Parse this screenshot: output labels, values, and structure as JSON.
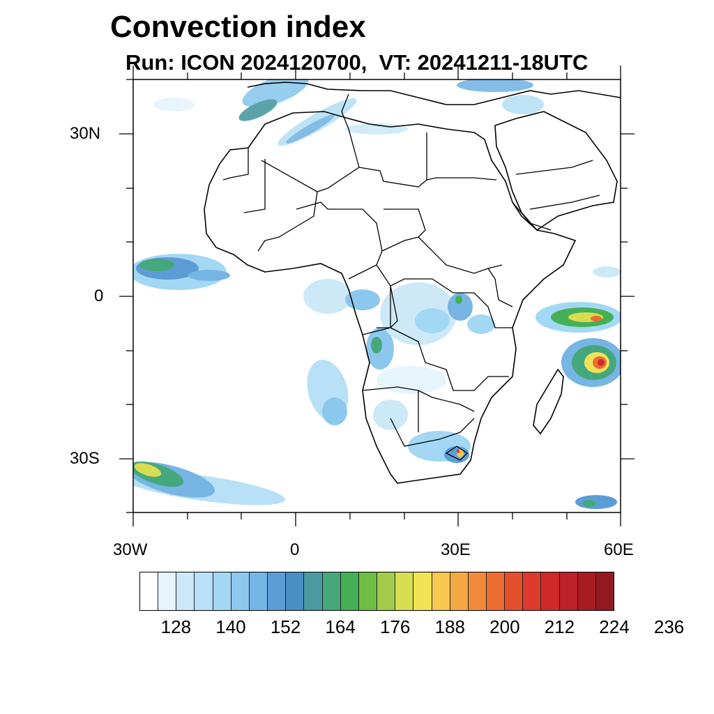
{
  "title": "Convection index",
  "subtitle": "Run: ICON 2024120700,  VT: 20241211-18UTC",
  "map": {
    "lon_range": [
      -30,
      60
    ],
    "lat_range": [
      -40,
      40
    ],
    "lat_labels": [
      "30N",
      "0",
      "30S"
    ],
    "lon_labels": [
      "30W",
      "0",
      "30E",
      "60E"
    ]
  },
  "colorbar": {
    "colors": [
      "#ffffff",
      "#e6f4fc",
      "#cde9f8",
      "#b8e0f6",
      "#a2d8f4",
      "#8cc8ee",
      "#76b5e4",
      "#5d9dd6",
      "#4a8fc4",
      "#4a9aa0",
      "#45a87c",
      "#45b055",
      "#6fbd45",
      "#a4cc4c",
      "#d8dc50",
      "#f0e256",
      "#f6c850",
      "#f4a844",
      "#f18a3a",
      "#ec6c32",
      "#e4502c",
      "#dc3a2a",
      "#cf2a2a",
      "#bc2028",
      "#a81c24",
      "#921a20"
    ],
    "labels": [
      "128",
      "140",
      "152",
      "164",
      "176",
      "188",
      "200",
      "212",
      "224",
      "236"
    ]
  }
}
